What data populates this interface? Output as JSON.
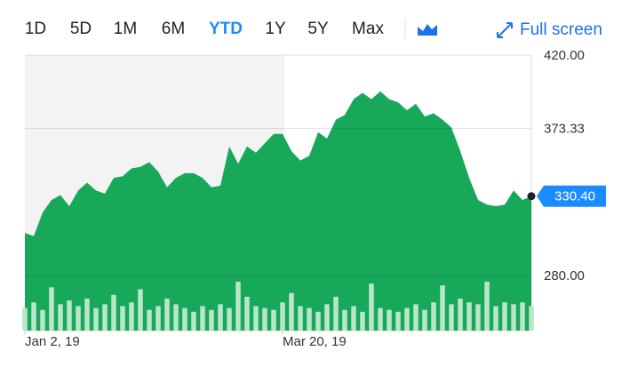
{
  "toolbar": {
    "ranges": [
      "1D",
      "5D",
      "1M",
      "6M",
      "YTD",
      "1Y",
      "5Y",
      "Max"
    ],
    "selected": "YTD",
    "full_screen": "Full screen"
  },
  "chart_data": {
    "type": "area",
    "categories": [
      "Jan 2, 19",
      null,
      null,
      null,
      null,
      null,
      null,
      null,
      null,
      null,
      null,
      null,
      null,
      null,
      null,
      null,
      null,
      null,
      null,
      null,
      null,
      null,
      null,
      null,
      null,
      null,
      null,
      null,
      null,
      "Mar 20, 19",
      null,
      null,
      null,
      null,
      null,
      null,
      null,
      null,
      null,
      null,
      null,
      null,
      null,
      null,
      null,
      null,
      null,
      null,
      null,
      null,
      null,
      null,
      null,
      null,
      null,
      null,
      null,
      null
    ],
    "series": [
      {
        "name": "price",
        "color": "#17a85a",
        "values": [
          307,
          305,
          320,
          328,
          331,
          324,
          334,
          339,
          334,
          332,
          342,
          343,
          348,
          349,
          352,
          346,
          336,
          342,
          345,
          345,
          342,
          336,
          337,
          362,
          351,
          362,
          358,
          364,
          370,
          370,
          359,
          353,
          356,
          371,
          367,
          379,
          382,
          392,
          396,
          392,
          397,
          392,
          390,
          385,
          389,
          381,
          383,
          379,
          374,
          359,
          342,
          328,
          325,
          324,
          325,
          334,
          328,
          330.4
        ]
      }
    ],
    "volume": {
      "color": "#b9e6c9",
      "values": [
        24,
        30,
        22,
        46,
        28,
        32,
        26,
        34,
        24,
        28,
        38,
        26,
        30,
        44,
        22,
        26,
        34,
        28,
        24,
        20,
        26,
        22,
        28,
        24,
        52,
        36,
        26,
        24,
        22,
        30,
        40,
        26,
        24,
        20,
        28,
        36,
        22,
        26,
        20,
        50,
        24,
        22,
        20,
        24,
        28,
        22,
        30,
        48,
        28,
        34,
        30,
        28,
        52,
        26,
        30,
        28,
        30,
        26
      ]
    },
    "last_price": {
      "value": 330.4,
      "label": "330.40"
    },
    "ylim": [
      245,
      420
    ],
    "yticks": [
      {
        "value": 280,
        "label": "280.00"
      },
      {
        "value": 373.33,
        "label": "373.33"
      },
      {
        "value": 420,
        "label": "420.00"
      }
    ],
    "grid": true
  }
}
